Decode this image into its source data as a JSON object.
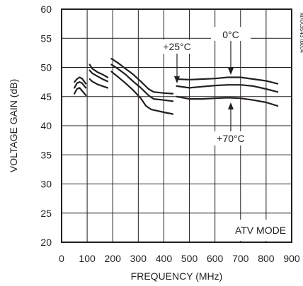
{
  "chart_data": {
    "type": "line",
    "title": "",
    "xlabel": "FREQUENCY (MHz)",
    "ylabel": "VOLTAGE GAIN (dB)",
    "xlim": [
      0,
      900
    ],
    "ylim": [
      20,
      60
    ],
    "x_ticks": [
      "0",
      "100",
      "200",
      "300",
      "400",
      "500",
      "600",
      "700",
      "800",
      "900"
    ],
    "y_ticks": [
      "20",
      "25",
      "30",
      "35",
      "40",
      "45",
      "50",
      "55",
      "60"
    ],
    "grid": true,
    "annotations": {
      "mode": "ATV MODE",
      "label_0c": "0°C",
      "label_25c": "+25°C",
      "label_70c": "+70°C",
      "figure_id": "MAX3543 toc04"
    },
    "series": [
      {
        "name": "0°C",
        "segments": [
          [
            [
              50,
              47.5
            ],
            [
              60,
              48.0
            ],
            [
              70,
              48.3
            ],
            [
              80,
              48.1
            ],
            [
              95,
              47.2
            ]
          ],
          [
            [
              110,
              50.5
            ],
            [
              120,
              49.8
            ],
            [
              140,
              49.2
            ],
            [
              160,
              48.8
            ],
            [
              180,
              48.3
            ]
          ],
          [
            [
              195,
              51.5
            ],
            [
              220,
              50.8
            ],
            [
              250,
              49.8
            ],
            [
              280,
              48.8
            ],
            [
              310,
              47.6
            ],
            [
              340,
              46.3
            ],
            [
              360,
              45.8
            ],
            [
              400,
              45.6
            ],
            [
              435,
              45.5
            ]
          ],
          [
            [
              450,
              48.0
            ],
            [
              500,
              47.9
            ],
            [
              550,
              48.0
            ],
            [
              600,
              48.1
            ],
            [
              650,
              48.3
            ],
            [
              700,
              48.3
            ],
            [
              750,
              48.0
            ],
            [
              800,
              47.7
            ],
            [
              845,
              47.2
            ]
          ]
        ]
      },
      {
        "name": "+25°C",
        "segments": [
          [
            [
              50,
              46.5
            ],
            [
              60,
              47.3
            ],
            [
              70,
              47.5
            ],
            [
              80,
              47.3
            ],
            [
              95,
              46.5
            ]
          ],
          [
            [
              110,
              49.5
            ],
            [
              120,
              49.0
            ],
            [
              140,
              48.5
            ],
            [
              160,
              48.0
            ],
            [
              180,
              47.6
            ]
          ],
          [
            [
              195,
              50.5
            ],
            [
              220,
              49.8
            ],
            [
              250,
              48.8
            ],
            [
              280,
              47.6
            ],
            [
              310,
              46.5
            ],
            [
              340,
              45.2
            ],
            [
              360,
              44.6
            ],
            [
              400,
              44.4
            ],
            [
              435,
              44.2
            ]
          ],
          [
            [
              450,
              46.8
            ],
            [
              500,
              46.5
            ],
            [
              550,
              46.7
            ],
            [
              600,
              46.9
            ],
            [
              650,
              47.0
            ],
            [
              700,
              47.0
            ],
            [
              750,
              46.8
            ],
            [
              800,
              46.3
            ],
            [
              845,
              45.8
            ]
          ]
        ]
      },
      {
        "name": "+70°C",
        "segments": [
          [
            [
              50,
              45.5
            ],
            [
              60,
              46.3
            ],
            [
              70,
              46.5
            ],
            [
              80,
              46.0
            ],
            [
              95,
              45.2
            ]
          ],
          [
            [
              110,
              48.0
            ],
            [
              120,
              47.6
            ],
            [
              140,
              47.1
            ],
            [
              160,
              46.8
            ],
            [
              180,
              46.5
            ]
          ],
          [
            [
              195,
              49.3
            ],
            [
              220,
              48.4
            ],
            [
              250,
              47.3
            ],
            [
              280,
              46.1
            ],
            [
              310,
              44.7
            ],
            [
              330,
              43.4
            ],
            [
              350,
              42.8
            ],
            [
              400,
              42.3
            ],
            [
              435,
              42.0
            ]
          ],
          [
            [
              450,
              45.0
            ],
            [
              500,
              44.6
            ],
            [
              550,
              44.6
            ],
            [
              600,
              44.7
            ],
            [
              650,
              44.8
            ],
            [
              700,
              44.7
            ],
            [
              750,
              44.4
            ],
            [
              800,
              44.0
            ],
            [
              845,
              43.4
            ]
          ]
        ]
      }
    ]
  }
}
